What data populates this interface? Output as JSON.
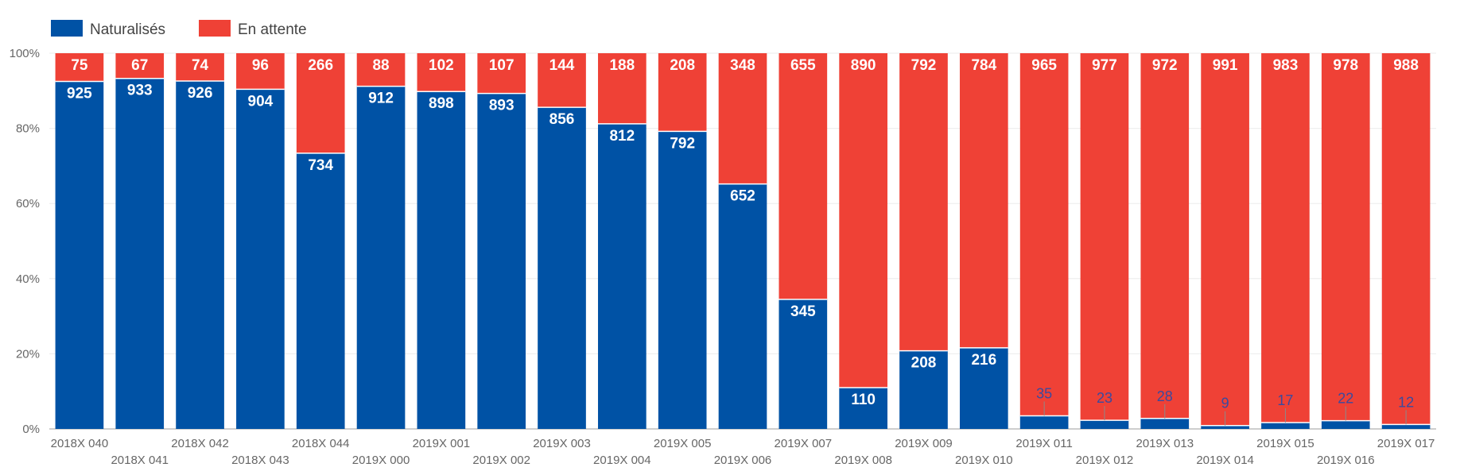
{
  "chart_data": {
    "type": "bar",
    "stacked": true,
    "normalized": true,
    "categories": [
      "2018X 040",
      "2018X 041",
      "2018X 042",
      "2018X 043",
      "2018X 044",
      "2019X 000",
      "2019X 001",
      "2019X 002",
      "2019X 003",
      "2019X 004",
      "2019X 005",
      "2019X 006",
      "2019X 007",
      "2019X 008",
      "2019X 009",
      "2019X 010",
      "2019X 011",
      "2019X 012",
      "2019X 013",
      "2019X 014",
      "2019X 015",
      "2019X 016",
      "2019X 017"
    ],
    "series": [
      {
        "name": "Naturalisés",
        "color": "#0052a5",
        "values": [
          925,
          933,
          926,
          904,
          734,
          912,
          898,
          893,
          856,
          812,
          792,
          652,
          345,
          110,
          208,
          216,
          35,
          23,
          28,
          9,
          17,
          22,
          12
        ]
      },
      {
        "name": "En attente",
        "color": "#ef4136",
        "values": [
          75,
          67,
          74,
          96,
          266,
          88,
          102,
          107,
          144,
          188,
          208,
          348,
          655,
          890,
          792,
          784,
          965,
          977,
          972,
          991,
          983,
          978,
          988
        ]
      }
    ],
    "y_ticks": [
      "0%",
      "20%",
      "40%",
      "60%",
      "80%",
      "100%"
    ],
    "ylim": [
      0,
      100
    ],
    "legend_position": "top-left",
    "grid": true
  }
}
